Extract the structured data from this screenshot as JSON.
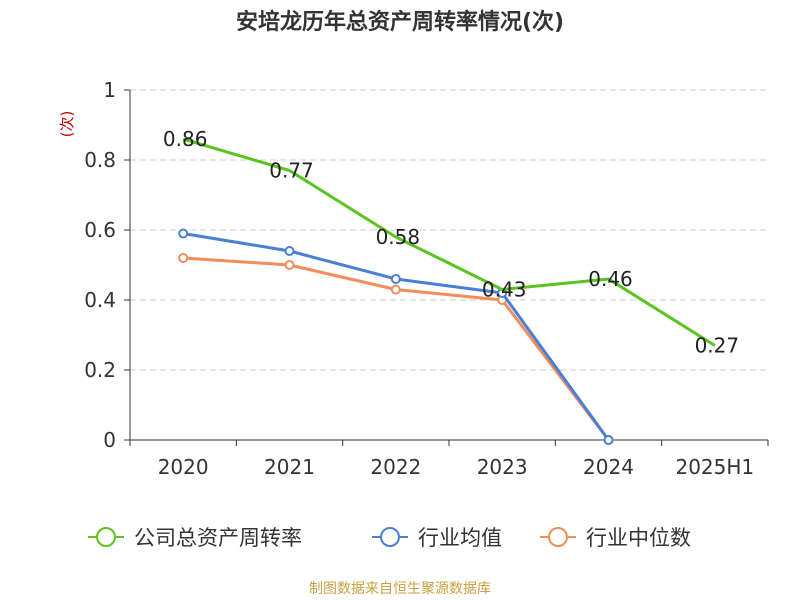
{
  "title": "安培龙历年总资产周转率情况(次)",
  "source": "制图数据来自恒生聚源数据库",
  "chart_data": {
    "type": "line",
    "title": "安培龙历年总资产周转率情况(次)",
    "ylabel": "(次)",
    "categories": [
      "2020",
      "2021",
      "2022",
      "2023",
      "2024",
      "2025H1"
    ],
    "ylim": [
      0,
      1
    ],
    "yticks": [
      0,
      0.2,
      0.4,
      0.6,
      0.8,
      1
    ],
    "ytick_labels": [
      "0",
      "0.2",
      "0.4",
      "0.6",
      "0.8",
      "1"
    ],
    "grid": true,
    "legend_position": "bottom",
    "series": [
      {
        "name": "公司总资产周转率",
        "color": "#5ac41f",
        "values": [
          0.86,
          0.77,
          0.58,
          0.43,
          0.46,
          0.27
        ],
        "labels": [
          "0.86",
          "0.77",
          "0.58",
          "0.43",
          "0.46",
          "0.27"
        ],
        "markers": false
      },
      {
        "name": "行业均值",
        "color": "#4a7fd6",
        "values": [
          0.59,
          0.54,
          0.46,
          0.42,
          0,
          null
        ],
        "labels": null,
        "markers": true
      },
      {
        "name": "行业中位数",
        "color": "#f28c5a",
        "values": [
          0.52,
          0.5,
          0.43,
          0.4,
          0,
          null
        ],
        "labels": null,
        "markers": true
      }
    ]
  },
  "colors": {
    "axis": "#333333",
    "grid": "#cccccc",
    "ylabel": "#cc0000",
    "title": "#333333",
    "source": "#c9a040"
  }
}
